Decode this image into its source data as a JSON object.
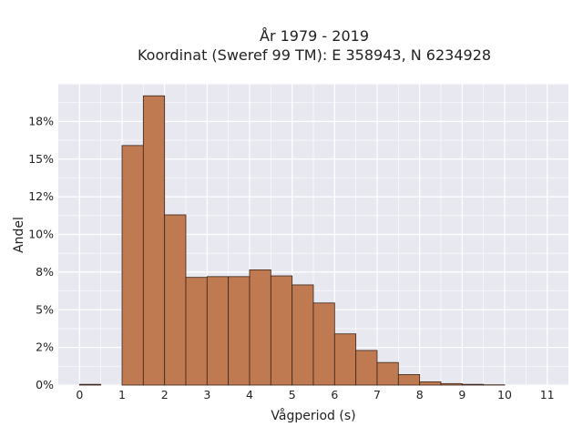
{
  "chart_data": {
    "type": "bar",
    "title_line1": "År 1979 - 2019",
    "title_line2": "Koordinat (Sweref 99 TM): E 358943, N 6234928",
    "xlabel": "Vågperiod (s)",
    "ylabel": "Andel",
    "bin_width": 0.5,
    "bin_starts": [
      0,
      0.5,
      1,
      1.5,
      2,
      2.5,
      3,
      3.5,
      4,
      4.5,
      5,
      5.5,
      6,
      6.5,
      7,
      7.5,
      8,
      8.5,
      9,
      9.5,
      10,
      10.5
    ],
    "values": [
      0.05,
      0,
      15.9,
      19.2,
      11.3,
      7.15,
      7.2,
      7.2,
      7.65,
      7.25,
      6.65,
      5.45,
      3.4,
      2.3,
      1.5,
      0.7,
      0.22,
      0.1,
      0.05,
      0.02,
      0,
      0
    ],
    "xticks": [
      "0",
      "1",
      "2",
      "3",
      "4",
      "5",
      "6",
      "7",
      "8",
      "9",
      "10",
      "11"
    ],
    "xlim": [
      -0.5,
      11.5
    ],
    "ylim": [
      0,
      20
    ],
    "yticks": [
      "0%",
      "2%",
      "5%",
      "8%",
      "10%",
      "12%",
      "15%",
      "18%"
    ],
    "ytick_values": [
      0,
      2.5,
      5,
      7.5,
      10,
      12.5,
      15,
      17.5
    ],
    "grid": true,
    "colors": {
      "bar_fill": "#c07a52",
      "bar_edge": "#3a2418",
      "plot_background": "#e8e8f0",
      "grid": "#ffffff"
    }
  }
}
